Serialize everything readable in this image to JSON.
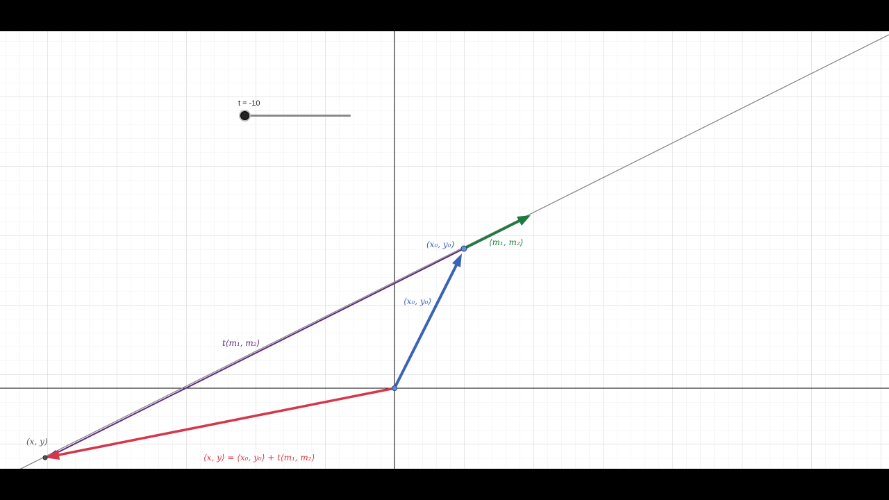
{
  "slider": {
    "caption": "t = -10",
    "parameter": "t",
    "value": -10,
    "position_fraction": 0.0
  },
  "labels": {
    "point_origin_offset": "(x₀, y₀)",
    "direction_vector": "⟨m₁, m₂⟩",
    "position_vector": "⟨x₀, y₀⟩",
    "scaled_direction": "t⟨m₁, m₂⟩",
    "point_xy": "(x, y)",
    "equation": "⟨x, y⟩ = ⟨x₀, y₀⟩ + t⟨m₁, m₂⟩"
  },
  "colors": {
    "position_vector": "#3a63b5",
    "direction_vector": "#1f7a3f",
    "scaled_direction": "#5b2a8a",
    "result_vector": "#d6364b",
    "line": "#8c8c8c",
    "axis": "#000000",
    "grid_major": "#c8c8c8",
    "grid_minor": "#ececec"
  }
}
